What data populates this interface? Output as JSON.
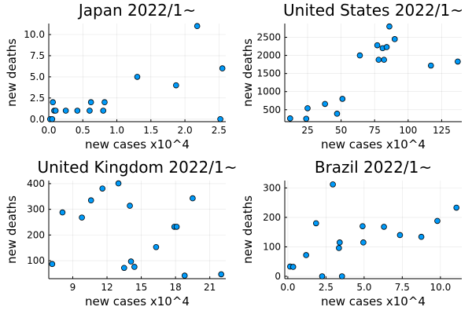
{
  "chart_data": [
    {
      "type": "scatter",
      "title": "Japan 2022/1~",
      "xlabel": "new cases x10^4",
      "ylabel": "new deaths",
      "xlim": [
        0,
        2.6
      ],
      "ylim": [
        -0.3,
        11.3
      ],
      "xticks": [
        0.0,
        0.5,
        1.0,
        1.5,
        2.0,
        2.5
      ],
      "xtick_labels": [
        "0.0",
        "0.5",
        "1.0",
        "1.5",
        "2.0",
        "2.5"
      ],
      "yticks": [
        0.0,
        2.5,
        5.0,
        7.5,
        10.0
      ],
      "ytick_labels": [
        "0.0",
        "2.5",
        "5.0",
        "7.5",
        "10.0"
      ],
      "grid": true,
      "legend": "none",
      "x": [
        0.02,
        0.05,
        0.06,
        0.08,
        0.1,
        0.25,
        0.42,
        0.6,
        0.62,
        0.8,
        0.82,
        1.3,
        1.87,
        2.18,
        2.52,
        2.55
      ],
      "y": [
        0,
        0,
        2,
        1,
        1,
        1,
        1,
        1,
        2,
        1,
        2,
        5,
        4,
        11,
        0,
        6
      ]
    },
    {
      "type": "scatter",
      "title": "United States 2022/1~",
      "xlabel": "new cases x10^4",
      "ylabel": "new deaths",
      "xlim": [
        8,
        140
      ],
      "ylim": [
        170,
        2880
      ],
      "xticks": [
        25,
        50,
        75,
        100,
        125
      ],
      "xtick_labels": [
        "25",
        "50",
        "75",
        "100",
        "125"
      ],
      "yticks": [
        500,
        1000,
        1500,
        2000,
        2500
      ],
      "ytick_labels": [
        "500",
        "1000",
        "1500",
        "2000",
        "2500"
      ],
      "grid": true,
      "legend": "none",
      "x": [
        12,
        24,
        25,
        38,
        47,
        51,
        64,
        77,
        78,
        81,
        82,
        84,
        86,
        90,
        117,
        137
      ],
      "y": [
        260,
        250,
        540,
        660,
        390,
        800,
        2000,
        2280,
        1880,
        2200,
        1880,
        2230,
        2800,
        2450,
        1720,
        1830
      ]
    },
    {
      "type": "scatter",
      "title": "United Kingdom 2022/1~",
      "xlabel": "new cases x10^4",
      "ylabel": "new deaths",
      "xlim": [
        6.9,
        22.4
      ],
      "ylim": [
        30,
        412
      ],
      "xticks": [
        9,
        12,
        15,
        18,
        21
      ],
      "xtick_labels": [
        "9",
        "12",
        "15",
        "18",
        "21"
      ],
      "yticks": [
        100,
        200,
        300,
        400
      ],
      "ytick_labels": [
        "100",
        "200",
        "300",
        "400"
      ],
      "grid": true,
      "legend": "none",
      "x": [
        7.2,
        8.1,
        9.8,
        10.6,
        11.6,
        13.0,
        13.5,
        14.0,
        14.1,
        14.4,
        16.3,
        17.9,
        18.1,
        18.8,
        19.5,
        22.0
      ],
      "y": [
        87,
        288,
        268,
        335,
        381,
        401,
        72,
        314,
        97,
        76,
        153,
        232,
        232,
        42,
        343,
        47
      ]
    },
    {
      "type": "scatter",
      "title": "Brazil 2022/1~",
      "xlabel": "new cases x10^4",
      "ylabel": "new deaths",
      "xlim": [
        -0.2,
        11.4
      ],
      "ylim": [
        -8,
        325
      ],
      "xticks": [
        0.0,
        2.5,
        5.0,
        7.5,
        10.0
      ],
      "xtick_labels": [
        "0.0",
        "2.5",
        "5.0",
        "7.5",
        "10.0"
      ],
      "yticks": [
        0,
        100,
        200,
        300
      ],
      "ytick_labels": [
        "0",
        "100",
        "200",
        "300"
      ],
      "grid": true,
      "legend": "none",
      "x": [
        0.15,
        0.35,
        1.2,
        1.85,
        2.25,
        2.95,
        3.35,
        3.4,
        3.55,
        4.9,
        4.95,
        6.3,
        7.35,
        8.75,
        9.8,
        11.05
      ],
      "y": [
        33,
        32,
        72,
        180,
        0,
        312,
        96,
        115,
        0,
        170,
        115,
        168,
        140,
        134,
        188,
        233
      ]
    }
  ]
}
